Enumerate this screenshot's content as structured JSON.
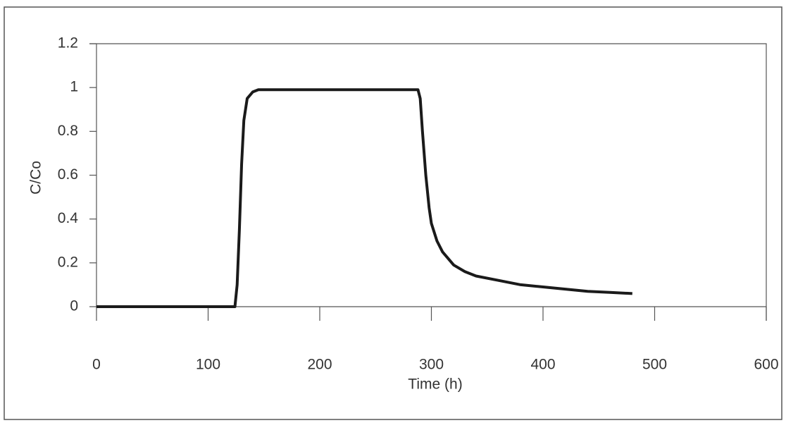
{
  "chart_data": {
    "type": "line",
    "x_label": "Time (h)",
    "y_label": "C/Co",
    "xlim": [
      0,
      600
    ],
    "xticks": [
      0,
      100,
      200,
      300,
      400,
      500,
      600
    ],
    "ylim": [
      0,
      1.2
    ],
    "yticks": [
      0,
      0.2,
      0.4,
      0.6,
      0.8,
      1,
      1.2
    ],
    "grid": false,
    "series": [
      {
        "color": "#1a1a1a",
        "x": [
          0,
          100,
          120,
          124,
          126,
          128,
          130,
          132,
          135,
          140,
          145,
          150,
          200,
          250,
          288,
          290,
          292,
          295,
          298,
          300,
          305,
          310,
          320,
          330,
          340,
          360,
          380,
          400,
          420,
          440,
          460,
          480
        ],
        "values": [
          0,
          0,
          0,
          0,
          0.1,
          0.35,
          0.65,
          0.85,
          0.95,
          0.98,
          0.99,
          0.99,
          0.99,
          0.99,
          0.99,
          0.95,
          0.8,
          0.6,
          0.45,
          0.38,
          0.3,
          0.25,
          0.19,
          0.16,
          0.14,
          0.12,
          0.1,
          0.09,
          0.08,
          0.07,
          0.065,
          0.06
        ]
      }
    ]
  }
}
